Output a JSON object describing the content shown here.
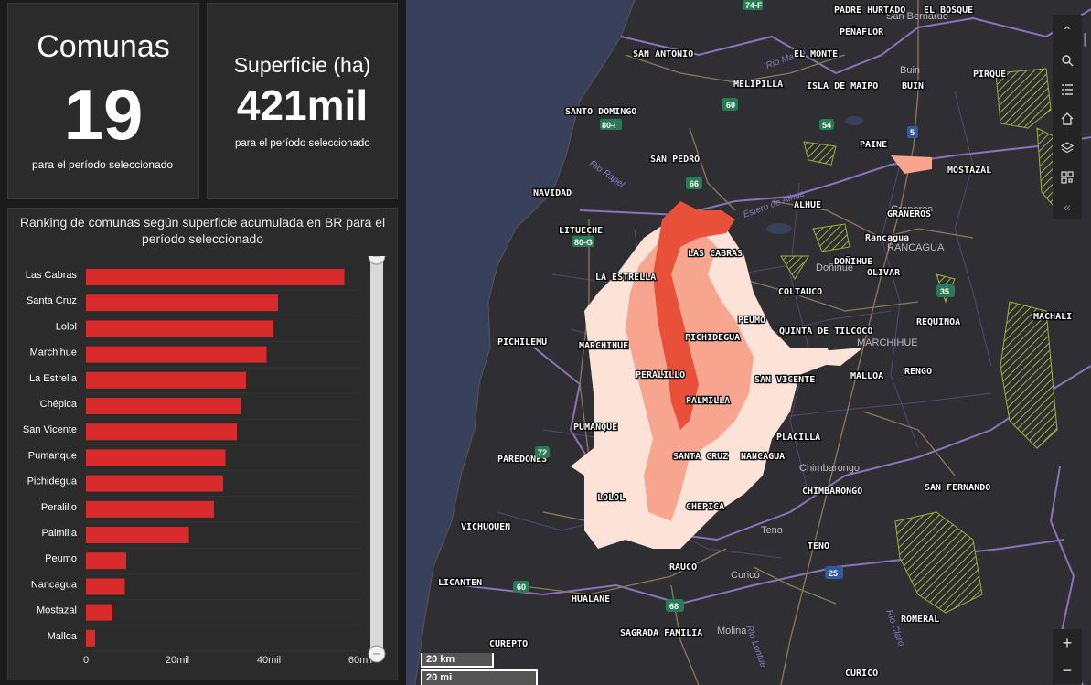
{
  "kpi_comunas": {
    "title": "Comunas",
    "value": "19",
    "footnote": "para el período seleccionado"
  },
  "kpi_superficie": {
    "title": "Superficie (ha)",
    "value": "421mil",
    "footnote": "para el período seleccionado"
  },
  "chart_data": {
    "type": "bar",
    "orientation": "horizontal",
    "title": "Ranking de comunas según superficie acumulada en BR para el período seleccionado",
    "categories": [
      "Las Cabras",
      "Santa Cruz",
      "Lolol",
      "Marchihue",
      "La Estrella",
      "Chépica",
      "San Vicente",
      "Pumanque",
      "Pichidegua",
      "Peralillo",
      "Palmilla",
      "Peumo",
      "Nancagua",
      "Mostazal",
      "Malloa"
    ],
    "values": [
      56500,
      42000,
      41000,
      39500,
      35000,
      34000,
      33000,
      30500,
      30000,
      28000,
      22500,
      8800,
      8500,
      5800,
      2000
    ],
    "xlim": [
      0,
      60000
    ],
    "xticks": [
      "0",
      "20mil",
      "40mil",
      "60mil"
    ],
    "xtick_values": [
      0,
      20000,
      40000,
      60000
    ],
    "bar_color": "#d92b2b",
    "grid": false
  },
  "map": {
    "place_labels": [
      "PADRE HURTADO",
      "EL BOSQUE",
      "San Bernardo",
      "PEÑAFLOR",
      "SAN ANTONIO",
      "EL MONTE",
      "Buin",
      "BUIN",
      "PIRQUE",
      "MELIPILLA",
      "ISLA DE MAIPO",
      "SANTO DOMINGO",
      "PAINE",
      "SAN PEDRO",
      "MOSTAZAL",
      "NAVIDAD",
      "Graneros",
      "ALHUE",
      "GRANEROS",
      "LITUECHE",
      "LAS CABRAS",
      "RANCAGUA",
      "Rancagua",
      "DOÑIHUE",
      "Doñihue",
      "OLIVAR",
      "LA ESTRELLA",
      "COLTAUCO",
      "REQUINOA",
      "MACHALI",
      "PEUMO",
      "PICHIDEGUA",
      "QUINTA DE TILCOCO",
      "PICHILEMU",
      "MARCHIHUE",
      "Rengo",
      "MALLOA",
      "RENGO",
      "PERALILLO",
      "SAN VICENTE",
      "PALMILLA",
      "PUMANQUE",
      "PLACILLA",
      "PAREDONES",
      "SANTA CRUZ",
      "NANCAGUA",
      "Chimbarongo",
      "CHIMBARONGO",
      "SAN FERNANDO",
      "LOLOL",
      "CHEPICA",
      "VICHUQUEN",
      "Teno",
      "TENO",
      "LICANTEN",
      "RAUCO",
      "Curicó",
      "HUALAÑE",
      "ROMERAL",
      "SAGRADA FAMILIA",
      "Molina",
      "CUREPTO",
      "CURICO"
    ],
    "river_labels": [
      "Rio Maipo",
      "Rio Rapel",
      "Estero de Alhue",
      "Rio Lontue",
      "Rio Claro"
    ],
    "route_shields": [
      "74-F",
      "60",
      "80-I",
      "54",
      "5",
      "66",
      "80-G",
      "35",
      "72",
      "25",
      "60",
      "68"
    ],
    "scale": {
      "km": "20 km",
      "mi": "20 mi"
    },
    "colors": {
      "water": "#39405c",
      "land": "#2f2f33",
      "boundary": "#9b7fd6",
      "burn_low": "#fde2d8",
      "burn_mid": "#f7a58e",
      "burn_high": "#e8503a"
    }
  },
  "toolbar": {
    "icons": [
      "collapse-up-icon",
      "search-icon",
      "list-icon",
      "home-icon",
      "layers-icon",
      "qr-grid-icon",
      "collapse-left-icon"
    ]
  },
  "zoom": {
    "plus": "+",
    "minus": "−"
  }
}
